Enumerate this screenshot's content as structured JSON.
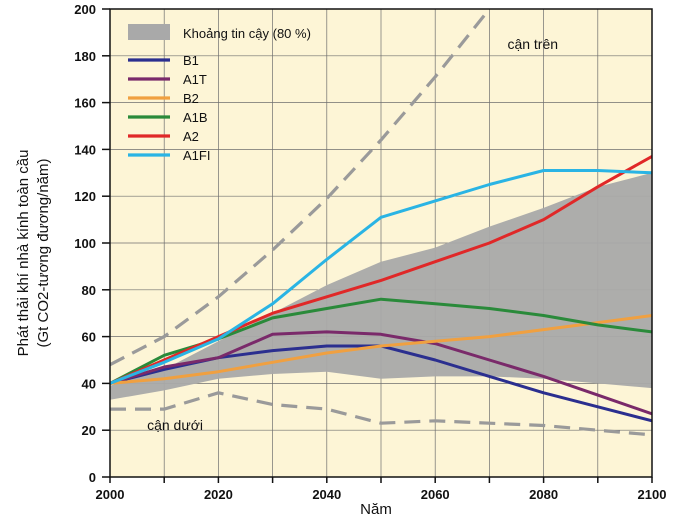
{
  "chart_data": {
    "type": "line",
    "xlabel": "Năm",
    "ylabel_lines": [
      "Phát thải khí nhà kính toàn cầu",
      "(Gt CO2-tương đương/năm)"
    ],
    "xlim": [
      2000,
      2100
    ],
    "ylim": [
      0,
      200
    ],
    "x_ticks": [
      2000,
      2020,
      2040,
      2060,
      2080,
      2100
    ],
    "y_ticks": [
      0,
      20,
      40,
      60,
      80,
      100,
      120,
      140,
      160,
      180,
      200
    ],
    "grid": true,
    "legend_position": "top-left",
    "background": "#fdf5d6",
    "band": {
      "name": "Khoảng tin cậy (80 %)",
      "color": "#a9a9a9",
      "x": [
        2000,
        2010,
        2020,
        2030,
        2040,
        2050,
        2060,
        2070,
        2080,
        2090,
        2100
      ],
      "upper": [
        39,
        46,
        58,
        70,
        82,
        92,
        98,
        107,
        115,
        124,
        130
      ],
      "lower": [
        33,
        37,
        42,
        44,
        45,
        42,
        43,
        43,
        42,
        40,
        38
      ]
    },
    "series": [
      {
        "name": "B1",
        "color": "#2b2f8f",
        "x": [
          2000,
          2010,
          2020,
          2030,
          2040,
          2050,
          2060,
          2070,
          2080,
          2090,
          2100
        ],
        "y": [
          40,
          46,
          51,
          54,
          56,
          56,
          50,
          43,
          36,
          30,
          24
        ]
      },
      {
        "name": "A1T",
        "color": "#7a2a6a",
        "x": [
          2000,
          2010,
          2020,
          2030,
          2040,
          2050,
          2060,
          2070,
          2080,
          2090,
          2100
        ],
        "y": [
          40,
          47,
          51,
          61,
          62,
          61,
          57,
          50,
          43,
          35,
          27
        ]
      },
      {
        "name": "B2",
        "color": "#f0a040",
        "x": [
          2000,
          2010,
          2020,
          2030,
          2040,
          2050,
          2060,
          2070,
          2080,
          2090,
          2100
        ],
        "y": [
          40,
          42,
          45,
          49,
          53,
          56,
          58,
          60,
          63,
          66,
          69
        ]
      },
      {
        "name": "A1B",
        "color": "#2a8a3a",
        "x": [
          2000,
          2010,
          2020,
          2030,
          2040,
          2050,
          2060,
          2070,
          2080,
          2090,
          2100
        ],
        "y": [
          40,
          52,
          59,
          68,
          72,
          76,
          74,
          72,
          69,
          65,
          62
        ]
      },
      {
        "name": "A2",
        "color": "#e02828",
        "x": [
          2000,
          2010,
          2020,
          2030,
          2040,
          2050,
          2060,
          2070,
          2080,
          2090,
          2100
        ],
        "y": [
          40,
          50,
          60,
          70,
          77,
          84,
          92,
          100,
          110,
          124,
          137
        ]
      },
      {
        "name": "A1FI",
        "color": "#2ab4e4",
        "x": [
          2000,
          2010,
          2020,
          2030,
          2040,
          2050,
          2060,
          2070,
          2080,
          2090,
          2100
        ],
        "y": [
          40,
          49,
          59,
          74,
          93,
          111,
          118,
          125,
          131,
          131,
          130
        ]
      }
    ],
    "bounds": [
      {
        "name": "cận trên",
        "color": "#9a9a9a",
        "x": [
          2000,
          2010,
          2020,
          2030,
          2040,
          2050,
          2060,
          2070
        ],
        "y": [
          48,
          60,
          77,
          97,
          119,
          144,
          171,
          200
        ]
      },
      {
        "name": "cận dưới",
        "color": "#9a9a9a",
        "x": [
          2000,
          2010,
          2020,
          2030,
          2040,
          2050,
          2060,
          2070,
          2080,
          2090,
          2100
        ],
        "y": [
          29,
          29,
          36,
          31,
          29,
          23,
          24,
          23,
          22,
          20,
          18
        ]
      }
    ],
    "annotations": [
      {
        "text": "cận trên",
        "x": 2078,
        "y": 183
      },
      {
        "text": "cận dưới",
        "x": 2012,
        "y": 20
      }
    ]
  }
}
